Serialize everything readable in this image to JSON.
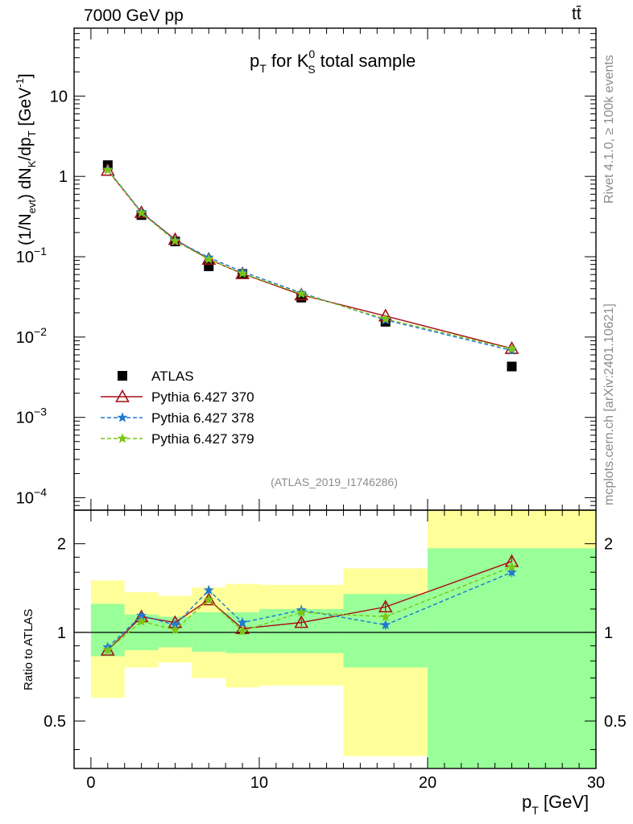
{
  "header": {
    "left_label": "7000 GeV pp",
    "right_label": "tt̄"
  },
  "side_labels": {
    "rivet": "Rivet 4.1.0, ≥ 100k events",
    "mcplots": "mcplots.cern.ch [arXiv:2401.10621]"
  },
  "chart_data": [
    {
      "type": "scatter",
      "panel": "main",
      "title_parts": {
        "p": "p",
        "T": "T",
        "for": " for K",
        "sup": "0",
        "sub": "S",
        "rest": " total sample"
      },
      "ylabel_parts": {
        "a": "(1/N",
        "evt": "evt",
        "b": ") dN",
        "K": "K",
        "c": "/dp",
        "T": "T",
        "d": " [GeV",
        "e": "-1",
        "f": "]"
      },
      "yscale": "log",
      "ylim": [
        7e-05,
        70
      ],
      "xlim": [
        -1,
        30
      ],
      "yticks": [
        {
          "value": 10,
          "base": "10",
          "exp": ""
        },
        {
          "value": 1,
          "base": "1",
          "exp": ""
        },
        {
          "value": 0.1,
          "base": "10",
          "exp": "−1"
        },
        {
          "value": 0.01,
          "base": "10",
          "exp": "−2"
        },
        {
          "value": 0.001,
          "base": "10",
          "exp": "−3"
        },
        {
          "value": 0.0001,
          "base": "10",
          "exp": "−4"
        }
      ],
      "analysis_label": "(ATLAS_2019_I1746286)",
      "legend_position": "bottom-left",
      "x": [
        1,
        3,
        5,
        7,
        9,
        12.5,
        17.5,
        25
      ],
      "series": [
        {
          "name": "ATLAS",
          "marker": "square",
          "color": "#000000",
          "style": "none",
          "values": [
            1.38,
            0.33,
            0.155,
            0.076,
            0.061,
            0.031,
            0.0155,
            0.0043
          ]
        },
        {
          "name": "Pythia 6.427 370",
          "marker": "triangle",
          "color": "#a50f15",
          "style": "solid",
          "values": [
            1.19,
            0.355,
            0.164,
            0.093,
            0.0615,
            0.0335,
            0.0183,
            0.0072
          ]
        },
        {
          "name": "Pythia 6.427 378",
          "marker": "star",
          "color": "#1f77d4",
          "style": "dashed",
          "values": [
            1.22,
            0.36,
            0.16,
            0.098,
            0.065,
            0.0355,
            0.0163,
            0.0068
          ]
        },
        {
          "name": "Pythia 6.427 379",
          "marker": "star",
          "color": "#7cc614",
          "style": "dashed",
          "values": [
            1.2,
            0.35,
            0.157,
            0.093,
            0.062,
            0.0345,
            0.0168,
            0.0071
          ]
        }
      ]
    },
    {
      "type": "scatter",
      "panel": "ratio",
      "ylabel": "Ratio to ATLAS",
      "xlabel": "p",
      "xlabel_sub": "T",
      "xlabel_unit": " [GeV]",
      "yscale": "log",
      "ylim": [
        0.345,
        2.6
      ],
      "xlim": [
        -1,
        30
      ],
      "xticks": [
        0,
        10,
        20,
        30
      ],
      "xtick_labels": [
        "0",
        "10",
        "20",
        "30"
      ],
      "yticks": [
        2,
        1,
        0.5
      ],
      "ytick_labels": [
        "2",
        "1",
        "0.5"
      ],
      "reference_line": 1,
      "bands": [
        {
          "x0": 0,
          "x1": 2,
          "inner": [
            0.83,
            1.25
          ],
          "outer": [
            0.6,
            1.5
          ]
        },
        {
          "x0": 2,
          "x1": 4,
          "inner": [
            0.87,
            1.15
          ],
          "outer": [
            0.76,
            1.37
          ]
        },
        {
          "x0": 4,
          "x1": 6,
          "inner": [
            0.89,
            1.13
          ],
          "outer": [
            0.79,
            1.33
          ]
        },
        {
          "x0": 6,
          "x1": 8,
          "inner": [
            0.86,
            1.17
          ],
          "outer": [
            0.7,
            1.42
          ]
        },
        {
          "x0": 8,
          "x1": 10,
          "inner": [
            0.85,
            1.17
          ],
          "outer": [
            0.65,
            1.46
          ]
        },
        {
          "x0": 10,
          "x1": 15,
          "inner": [
            0.85,
            1.2
          ],
          "outer": [
            0.66,
            1.45
          ]
        },
        {
          "x0": 15,
          "x1": 20,
          "inner": [
            0.76,
            1.35
          ],
          "outer": [
            0.38,
            1.65
          ]
        },
        {
          "x0": 20,
          "x1": 30,
          "inner": [
            0.345,
            1.93
          ],
          "outer": [
            0.345,
            2.6
          ]
        }
      ],
      "band_colors": {
        "inner": "#99ff99",
        "outer": "#ffff99"
      },
      "x": [
        1,
        3,
        5,
        7,
        9,
        12.5,
        17.5,
        25
      ],
      "series": [
        {
          "name": "Pythia 6.427 370",
          "color": "#a50f15",
          "style": "solid",
          "marker": "triangle",
          "values": [
            0.87,
            1.13,
            1.08,
            1.29,
            1.03,
            1.08,
            1.22,
            1.74
          ],
          "errors": [
            0.02,
            0.02,
            0.02,
            0.03,
            0.03,
            0.03,
            0.04,
            0.06
          ]
        },
        {
          "name": "Pythia 6.427 378",
          "color": "#1f77d4",
          "style": "dashed",
          "marker": "star",
          "values": [
            0.89,
            1.14,
            1.06,
            1.39,
            1.08,
            1.19,
            1.06,
            1.6
          ],
          "errors": [
            0.02,
            0.02,
            0.02,
            0.04,
            0.03,
            0.03,
            0.04,
            0.06
          ]
        },
        {
          "name": "Pythia 6.427 379",
          "color": "#7cc614",
          "style": "dashed",
          "marker": "star",
          "values": [
            0.87,
            1.09,
            1.02,
            1.29,
            1.01,
            1.17,
            1.13,
            1.67
          ],
          "errors": [
            0.02,
            0.02,
            0.02,
            0.03,
            0.03,
            0.03,
            0.04,
            0.06
          ]
        }
      ]
    }
  ]
}
